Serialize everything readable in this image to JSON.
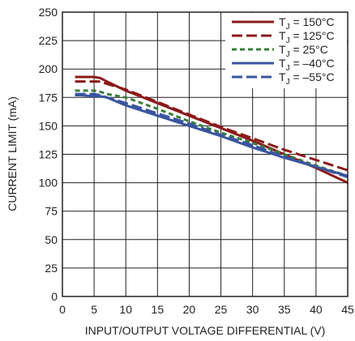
{
  "chart_data": {
    "type": "line",
    "xlabel": "INPUT/OUTPUT VOLTAGE DIFFERENTIAL (V)",
    "ylabel": "CURRENT LIMIT (mA)",
    "xlim": [
      0,
      45
    ],
    "ylim": [
      0,
      250
    ],
    "x_ticks": [
      0,
      5,
      10,
      15,
      20,
      25,
      30,
      35,
      40,
      45
    ],
    "y_ticks": [
      0,
      25,
      50,
      75,
      100,
      125,
      150,
      175,
      200,
      225,
      250
    ],
    "grid": true,
    "legend_position": "top-right",
    "series": [
      {
        "name": "T",
        "name_sub": "J",
        "name_rest": " = 150°C",
        "color": "#8b1a1a",
        "dash": "solid",
        "x": [
          2,
          3,
          5,
          6,
          7,
          10,
          15,
          20,
          25,
          30,
          35,
          40,
          45
        ],
        "y": [
          193,
          193,
          193,
          192,
          189,
          181,
          170,
          159,
          148,
          137,
          125,
          113,
          100
        ]
      },
      {
        "name": "T",
        "name_sub": "J",
        "name_rest": " = 125°C",
        "color": "#8b1a1a",
        "dash": "long-dash",
        "x": [
          2,
          3,
          5,
          6,
          7,
          10,
          15,
          20,
          25,
          30,
          35,
          40,
          45
        ],
        "y": [
          189,
          189,
          189,
          189,
          187,
          182,
          171,
          160,
          149,
          139,
          129,
          120,
          111
        ]
      },
      {
        "name": "T",
        "name_sub": "J",
        "name_rest": " = 25°C",
        "color": "#3a7d3a",
        "dash": "short-dash",
        "x": [
          2,
          3,
          5,
          6,
          7,
          10,
          15,
          20,
          25,
          30,
          35,
          40,
          45
        ],
        "y": [
          181,
          181,
          181,
          180,
          178,
          175,
          165,
          154,
          144,
          135,
          125,
          115,
          106
        ]
      },
      {
        "name": "T",
        "name_sub": "J",
        "name_rest": " = –40°C",
        "color": "#3a55a0",
        "dash": "solid",
        "x": [
          2,
          3,
          5,
          6,
          7,
          10,
          15,
          20,
          25,
          30,
          35,
          40,
          45
        ],
        "y": [
          177,
          177,
          176,
          176,
          175,
          168,
          159,
          150,
          141,
          131,
          122,
          114,
          106
        ]
      },
      {
        "name": "T",
        "name_sub": "J",
        "name_rest": " = –55°C",
        "color": "#3a55a0",
        "dash": "long-dash",
        "x": [
          2,
          3,
          5,
          6,
          7,
          10,
          15,
          20,
          25,
          30,
          35,
          40,
          45
        ],
        "y": [
          178,
          178,
          178,
          177,
          175,
          170,
          161,
          152,
          142,
          133,
          123,
          114,
          105
        ]
      }
    ]
  }
}
